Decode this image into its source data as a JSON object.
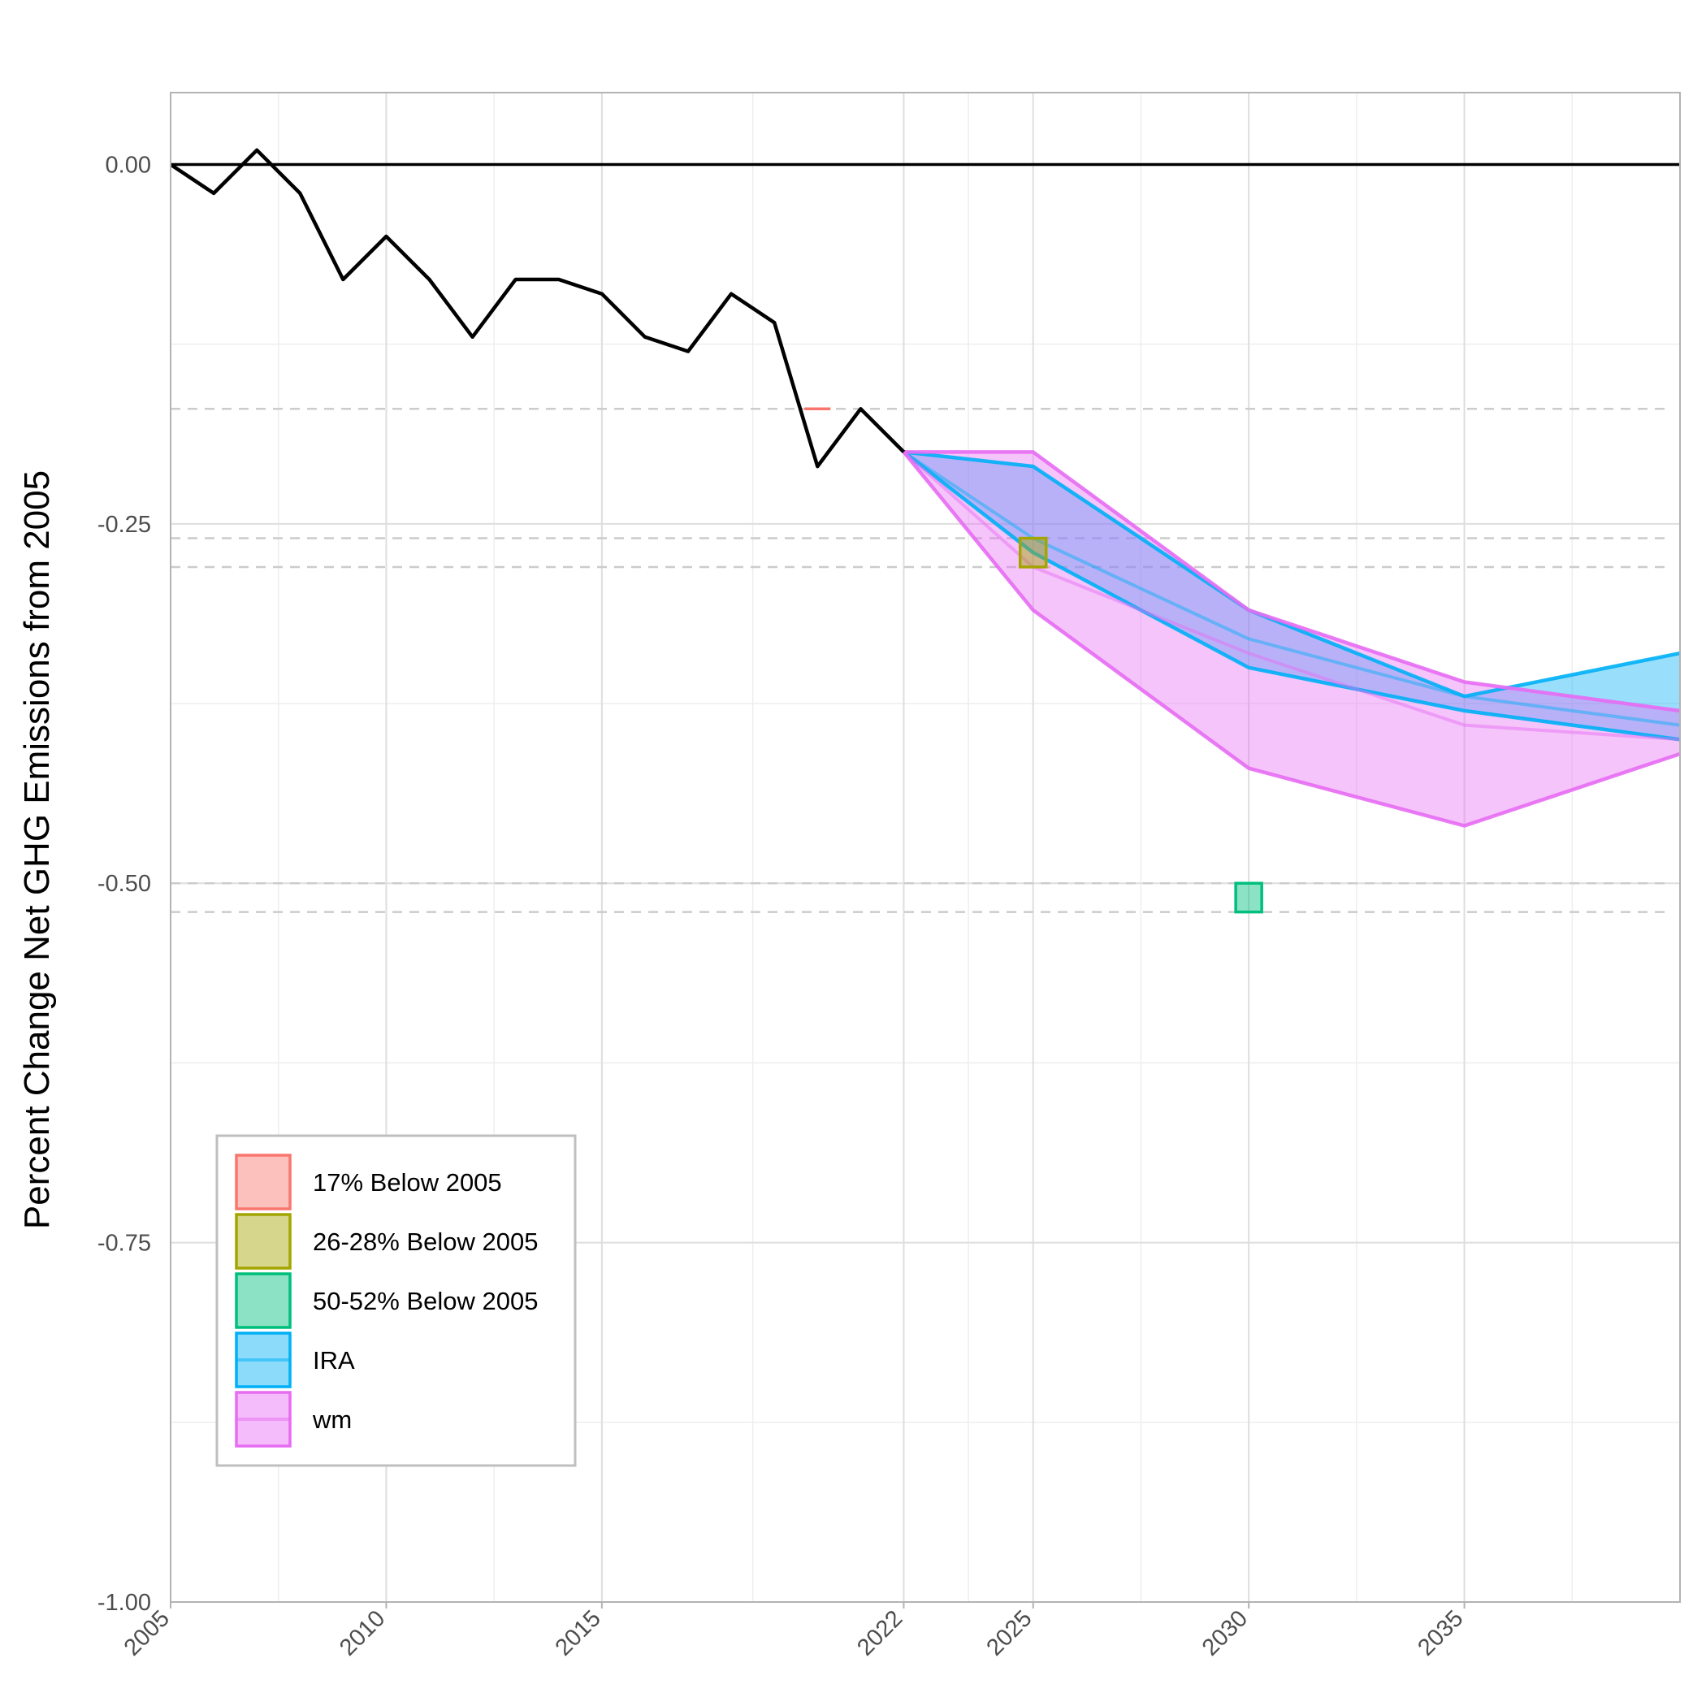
{
  "chart_data": {
    "type": "line",
    "title": "",
    "xlabel": "",
    "ylabel": "Percent Change Net GHG Emissions from 2005",
    "xlim": [
      2005,
      2040
    ],
    "ylim": [
      -1.0,
      0.05
    ],
    "x_ticks": [
      {
        "value": 2005,
        "label": "2005"
      },
      {
        "value": 2010,
        "label": "2010"
      },
      {
        "value": 2015,
        "label": "2015"
      },
      {
        "value": 2022,
        "label": "2022"
      },
      {
        "value": 2025,
        "label": "2025"
      },
      {
        "value": 2030,
        "label": "2030"
      },
      {
        "value": 2035,
        "label": "2035"
      }
    ],
    "x_minor_grid": [
      2007.5,
      2012.5,
      2018.5,
      2023.5,
      2027.5,
      2032.5,
      2037.5
    ],
    "y_ticks": [
      {
        "value": 0.0,
        "label": "0.00"
      },
      {
        "value": -0.25,
        "label": "-0.25"
      },
      {
        "value": -0.5,
        "label": "-0.50"
      },
      {
        "value": -0.75,
        "label": "-0.75"
      },
      {
        "value": -1.0,
        "label": "-1.00"
      }
    ],
    "y_minor_grid": [
      -0.125,
      -0.375,
      -0.625,
      -0.875
    ],
    "grid": true,
    "reference_line": {
      "y": 0.0,
      "color": "#000000"
    },
    "dashed_reference_lines": [
      -0.17,
      -0.26,
      -0.28,
      -0.5,
      -0.52
    ],
    "historical": {
      "color": "#000000",
      "x": [
        2005,
        2006,
        2007,
        2008,
        2009,
        2010,
        2011,
        2012,
        2013,
        2014,
        2015,
        2016,
        2017,
        2018,
        2019,
        2020,
        2021,
        2022
      ],
      "y": [
        0.0,
        -0.02,
        0.01,
        -0.02,
        -0.08,
        -0.05,
        -0.08,
        -0.12,
        -0.08,
        -0.08,
        -0.09,
        -0.12,
        -0.13,
        -0.09,
        -0.11,
        -0.21,
        -0.17,
        -0.2
      ]
    },
    "targets": [
      {
        "name": "17% Below 2005",
        "color": "#F8766D",
        "fill": "#F8766D",
        "x": 2020,
        "ymin": -0.17,
        "ymax": -0.17
      },
      {
        "name": "26-28% Below 2005",
        "color": "#A3A500",
        "fill": "#A3A500",
        "x": 2025,
        "ymin": -0.28,
        "ymax": -0.26
      },
      {
        "name": "50-52% Below 2005",
        "color": "#00BF7D",
        "fill": "#00BF7D",
        "x": 2030,
        "ymin": -0.52,
        "ymax": -0.5
      }
    ],
    "ranges": [
      {
        "name": "IRA",
        "color": "#00B0F6",
        "fill": "#00B0F6",
        "x": [
          2022,
          2025,
          2030,
          2035,
          2040
        ],
        "upper": [
          -0.2,
          -0.21,
          -0.31,
          -0.37,
          -0.34
        ],
        "lower": [
          -0.2,
          -0.27,
          -0.35,
          -0.38,
          -0.4
        ],
        "median": [
          -0.2,
          -0.26,
          -0.33,
          -0.37,
          -0.39
        ]
      },
      {
        "name": "wm",
        "color": "#E76BF3",
        "fill": "#E76BF3",
        "x": [
          2022,
          2025,
          2030,
          2035,
          2040
        ],
        "upper": [
          -0.2,
          -0.2,
          -0.31,
          -0.36,
          -0.38
        ],
        "lower": [
          -0.2,
          -0.31,
          -0.42,
          -0.46,
          -0.41
        ],
        "median": [
          -0.2,
          -0.28,
          -0.34,
          -0.39,
          -0.4
        ]
      }
    ],
    "legend": {
      "position": "bottom-left",
      "entries": [
        {
          "label": "17% Below 2005",
          "color": "#F8766D"
        },
        {
          "label": "26-28% Below 2005",
          "color": "#A3A500"
        },
        {
          "label": "50-52% Below 2005",
          "color": "#00BF7D"
        },
        {
          "label": "IRA",
          "color": "#00B0F6"
        },
        {
          "label": "wm",
          "color": "#E76BF3"
        }
      ]
    }
  }
}
